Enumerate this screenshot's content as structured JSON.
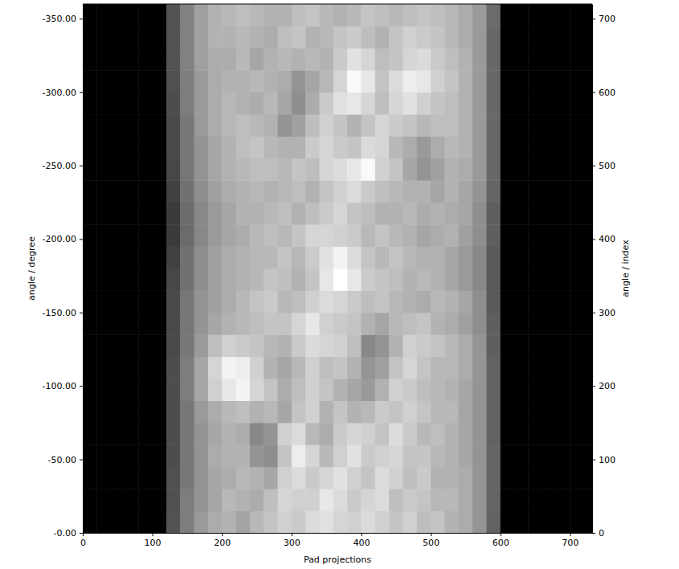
{
  "chart_data": {
    "type": "heatmap",
    "x_label": "Pad projections",
    "y_label": "angle / degree",
    "y2_label": "angle / index",
    "xlim": [
      0,
      732
    ],
    "xticks": [
      0,
      100,
      200,
      300,
      400,
      500,
      600,
      700
    ],
    "ylim": [
      0,
      -360
    ],
    "yticks": [
      {
        "value": 0,
        "label": "-0.00"
      },
      {
        "value": -50,
        "label": "-50.00"
      },
      {
        "value": -100,
        "label": "-100.00"
      },
      {
        "value": -150,
        "label": "-150.00"
      },
      {
        "value": -200,
        "label": "-200.00"
      },
      {
        "value": -250,
        "label": "-250.00"
      },
      {
        "value": -300,
        "label": "-300.00"
      },
      {
        "value": -350,
        "label": "-350.00"
      }
    ],
    "y2lim": [
      0,
      720
    ],
    "y2ticks": [
      0,
      100,
      200,
      300,
      400,
      500,
      600,
      700
    ],
    "x": [
      10,
      30,
      50,
      70,
      90,
      110,
      130,
      150,
      170,
      190,
      210,
      230,
      250,
      270,
      290,
      310,
      330,
      350,
      370,
      390,
      410,
      430,
      450,
      470,
      490,
      510,
      530,
      550,
      570,
      590,
      610,
      630,
      650,
      670,
      690,
      710,
      730
    ],
    "y": [
      -7.5,
      -22.5,
      -37.5,
      -52.5,
      -67.5,
      -82.5,
      -97.5,
      -112.5,
      -127.5,
      -142.5,
      -157.5,
      -172.5,
      -187.5,
      -202.5,
      -217.5,
      -232.5,
      -247.5,
      -262.5,
      -277.5,
      -292.5,
      -307.5,
      -322.5,
      -337.5,
      -352.5
    ],
    "values": [
      [
        0,
        0,
        0,
        0,
        0,
        0,
        0.28,
        0.42,
        0.52,
        0.58,
        0.6,
        0.55,
        0.62,
        0.66,
        0.7,
        0.68,
        0.74,
        0.76,
        0.72,
        0.7,
        0.74,
        0.7,
        0.66,
        0.7,
        0.64,
        0.66,
        0.6,
        0.58,
        0.5,
        0.33,
        0,
        0,
        0,
        0,
        0,
        0,
        0
      ],
      [
        0,
        0,
        0,
        0,
        0,
        0,
        0.27,
        0.42,
        0.5,
        0.56,
        0.62,
        0.6,
        0.58,
        0.64,
        0.72,
        0.7,
        0.7,
        0.78,
        0.74,
        0.68,
        0.72,
        0.74,
        0.64,
        0.68,
        0.66,
        0.62,
        0.62,
        0.58,
        0.5,
        0.34,
        0,
        0,
        0,
        0,
        0,
        0,
        0
      ],
      [
        0,
        0,
        0,
        0,
        0,
        0,
        0.27,
        0.4,
        0.5,
        0.56,
        0.58,
        0.62,
        0.6,
        0.56,
        0.7,
        0.74,
        0.68,
        0.72,
        0.76,
        0.7,
        0.66,
        0.74,
        0.7,
        0.64,
        0.68,
        0.6,
        0.6,
        0.58,
        0.5,
        0.34,
        0,
        0,
        0,
        0,
        0,
        0,
        0
      ],
      [
        0,
        0,
        0,
        0,
        0,
        0,
        0.26,
        0.4,
        0.5,
        0.58,
        0.6,
        0.6,
        0.5,
        0.48,
        0.66,
        0.8,
        0.72,
        0.62,
        0.7,
        0.76,
        0.68,
        0.7,
        0.72,
        0.66,
        0.66,
        0.62,
        0.6,
        0.56,
        0.5,
        0.34,
        0,
        0,
        0,
        0,
        0,
        0,
        0
      ],
      [
        0,
        0,
        0,
        0,
        0,
        0,
        0.26,
        0.4,
        0.5,
        0.56,
        0.6,
        0.58,
        0.46,
        0.5,
        0.7,
        0.74,
        0.62,
        0.58,
        0.68,
        0.72,
        0.7,
        0.66,
        0.74,
        0.68,
        0.62,
        0.64,
        0.6,
        0.56,
        0.5,
        0.33,
        0,
        0,
        0,
        0,
        0,
        0,
        0
      ],
      [
        0,
        0,
        0,
        0,
        0,
        0,
        0.26,
        0.4,
        0.52,
        0.58,
        0.62,
        0.64,
        0.6,
        0.62,
        0.56,
        0.66,
        0.7,
        0.6,
        0.66,
        0.6,
        0.62,
        0.68,
        0.66,
        0.7,
        0.66,
        0.62,
        0.62,
        0.56,
        0.5,
        0.33,
        0,
        0,
        0,
        0,
        0,
        0,
        0
      ],
      [
        0,
        0,
        0,
        0,
        0,
        0,
        0.26,
        0.42,
        0.56,
        0.7,
        0.78,
        0.82,
        0.72,
        0.66,
        0.58,
        0.64,
        0.7,
        0.66,
        0.6,
        0.56,
        0.52,
        0.6,
        0.7,
        0.68,
        0.64,
        0.62,
        0.6,
        0.56,
        0.5,
        0.33,
        0,
        0,
        0,
        0,
        0,
        0,
        0
      ],
      [
        0,
        0,
        0,
        0,
        0,
        0,
        0.26,
        0.42,
        0.56,
        0.72,
        0.82,
        0.8,
        0.7,
        0.6,
        0.56,
        0.62,
        0.7,
        0.64,
        0.66,
        0.6,
        0.5,
        0.54,
        0.66,
        0.72,
        0.66,
        0.62,
        0.62,
        0.58,
        0.5,
        0.33,
        0,
        0,
        0,
        0,
        0,
        0,
        0
      ],
      [
        0,
        0,
        0,
        0,
        0,
        0,
        0.25,
        0.4,
        0.52,
        0.64,
        0.7,
        0.68,
        0.66,
        0.62,
        0.6,
        0.68,
        0.74,
        0.72,
        0.7,
        0.64,
        0.46,
        0.5,
        0.6,
        0.7,
        0.68,
        0.66,
        0.62,
        0.58,
        0.5,
        0.32,
        0,
        0,
        0,
        0,
        0,
        0,
        0
      ],
      [
        0,
        0,
        0,
        0,
        0,
        0,
        0.25,
        0.4,
        0.5,
        0.56,
        0.6,
        0.62,
        0.64,
        0.66,
        0.66,
        0.72,
        0.78,
        0.7,
        0.68,
        0.66,
        0.6,
        0.56,
        0.62,
        0.64,
        0.66,
        0.6,
        0.58,
        0.54,
        0.48,
        0.32,
        0,
        0,
        0,
        0,
        0,
        0,
        0
      ],
      [
        0,
        0,
        0,
        0,
        0,
        0,
        0.25,
        0.4,
        0.5,
        0.54,
        0.58,
        0.62,
        0.66,
        0.68,
        0.62,
        0.64,
        0.7,
        0.74,
        0.72,
        0.68,
        0.64,
        0.66,
        0.62,
        0.6,
        0.58,
        0.62,
        0.6,
        0.56,
        0.48,
        0.3,
        0,
        0,
        0,
        0,
        0,
        0,
        0
      ],
      [
        0,
        0,
        0,
        0,
        0,
        0,
        0.24,
        0.38,
        0.48,
        0.54,
        0.58,
        0.6,
        0.62,
        0.66,
        0.64,
        0.6,
        0.66,
        0.78,
        0.86,
        0.78,
        0.68,
        0.66,
        0.64,
        0.6,
        0.62,
        0.6,
        0.56,
        0.52,
        0.46,
        0.3,
        0,
        0,
        0,
        0,
        0,
        0,
        0
      ],
      [
        0,
        0,
        0,
        0,
        0,
        0,
        0.22,
        0.38,
        0.48,
        0.54,
        0.58,
        0.6,
        0.62,
        0.62,
        0.66,
        0.62,
        0.68,
        0.76,
        0.82,
        0.74,
        0.66,
        0.62,
        0.66,
        0.62,
        0.6,
        0.6,
        0.56,
        0.52,
        0.46,
        0.3,
        0,
        0,
        0,
        0,
        0,
        0,
        0
      ],
      [
        0,
        0,
        0,
        0,
        0,
        0,
        0.2,
        0.36,
        0.46,
        0.52,
        0.56,
        0.58,
        0.62,
        0.64,
        0.62,
        0.66,
        0.72,
        0.72,
        0.7,
        0.68,
        0.62,
        0.66,
        0.62,
        0.6,
        0.56,
        0.58,
        0.6,
        0.54,
        0.48,
        0.32,
        0,
        0,
        0,
        0,
        0,
        0,
        0
      ],
      [
        0,
        0,
        0,
        0,
        0,
        0,
        0.2,
        0.36,
        0.46,
        0.52,
        0.56,
        0.6,
        0.6,
        0.62,
        0.64,
        0.6,
        0.64,
        0.68,
        0.72,
        0.66,
        0.64,
        0.6,
        0.6,
        0.62,
        0.58,
        0.6,
        0.58,
        0.56,
        0.48,
        0.32,
        0,
        0,
        0,
        0,
        0,
        0,
        0
      ],
      [
        0,
        0,
        0,
        0,
        0,
        0,
        0.22,
        0.38,
        0.48,
        0.54,
        0.58,
        0.6,
        0.62,
        0.6,
        0.62,
        0.64,
        0.6,
        0.66,
        0.7,
        0.74,
        0.68,
        0.64,
        0.62,
        0.6,
        0.6,
        0.56,
        0.6,
        0.56,
        0.5,
        0.34,
        0,
        0,
        0,
        0,
        0,
        0,
        0
      ],
      [
        0,
        0,
        0,
        0,
        0,
        0,
        0.24,
        0.4,
        0.5,
        0.56,
        0.6,
        0.62,
        0.64,
        0.64,
        0.62,
        0.66,
        0.64,
        0.72,
        0.74,
        0.78,
        0.84,
        0.7,
        0.66,
        0.56,
        0.5,
        0.54,
        0.6,
        0.58,
        0.52,
        0.35,
        0,
        0,
        0,
        0,
        0,
        0,
        0
      ],
      [
        0,
        0,
        0,
        0,
        0,
        0,
        0.25,
        0.4,
        0.5,
        0.56,
        0.6,
        0.64,
        0.66,
        0.62,
        0.6,
        0.6,
        0.68,
        0.72,
        0.68,
        0.66,
        0.74,
        0.72,
        0.62,
        0.58,
        0.52,
        0.58,
        0.62,
        0.6,
        0.52,
        0.35,
        0,
        0,
        0,
        0,
        0,
        0,
        0
      ],
      [
        0,
        0,
        0,
        0,
        0,
        0,
        0.25,
        0.4,
        0.52,
        0.58,
        0.62,
        0.64,
        0.62,
        0.6,
        0.5,
        0.54,
        0.64,
        0.7,
        0.66,
        0.6,
        0.66,
        0.72,
        0.68,
        0.66,
        0.62,
        0.64,
        0.64,
        0.6,
        0.52,
        0.35,
        0,
        0,
        0,
        0,
        0,
        0,
        0
      ],
      [
        0,
        0,
        0,
        0,
        0,
        0,
        0.26,
        0.42,
        0.52,
        0.58,
        0.62,
        0.6,
        0.58,
        0.62,
        0.56,
        0.48,
        0.58,
        0.68,
        0.76,
        0.78,
        0.72,
        0.64,
        0.72,
        0.76,
        0.7,
        0.66,
        0.64,
        0.6,
        0.52,
        0.35,
        0,
        0,
        0,
        0,
        0,
        0,
        0
      ],
      [
        0,
        0,
        0,
        0,
        0,
        0,
        0.27,
        0.42,
        0.52,
        0.58,
        0.6,
        0.6,
        0.62,
        0.6,
        0.58,
        0.5,
        0.56,
        0.62,
        0.72,
        0.84,
        0.78,
        0.66,
        0.74,
        0.8,
        0.78,
        0.7,
        0.66,
        0.6,
        0.52,
        0.35,
        0,
        0,
        0,
        0,
        0,
        0,
        0
      ],
      [
        0,
        0,
        0,
        0,
        0,
        0,
        0.28,
        0.44,
        0.54,
        0.58,
        0.58,
        0.62,
        0.56,
        0.6,
        0.62,
        0.6,
        0.62,
        0.6,
        0.68,
        0.76,
        0.72,
        0.64,
        0.66,
        0.72,
        0.74,
        0.68,
        0.64,
        0.6,
        0.52,
        0.35,
        0,
        0,
        0,
        0,
        0,
        0,
        0
      ],
      [
        0,
        0,
        0,
        0,
        0,
        0,
        0.28,
        0.44,
        0.54,
        0.6,
        0.6,
        0.62,
        0.6,
        0.58,
        0.64,
        0.66,
        0.6,
        0.62,
        0.66,
        0.68,
        0.64,
        0.6,
        0.66,
        0.7,
        0.68,
        0.66,
        0.62,
        0.58,
        0.52,
        0.35,
        0,
        0,
        0,
        0,
        0,
        0,
        0
      ],
      [
        0,
        0,
        0,
        0,
        0,
        0,
        0.28,
        0.44,
        0.54,
        0.6,
        0.62,
        0.64,
        0.62,
        0.6,
        0.6,
        0.64,
        0.66,
        0.62,
        0.6,
        0.62,
        0.66,
        0.64,
        0.62,
        0.64,
        0.66,
        0.64,
        0.62,
        0.58,
        0.52,
        0.36,
        0,
        0,
        0,
        0,
        0,
        0,
        0
      ]
    ]
  }
}
